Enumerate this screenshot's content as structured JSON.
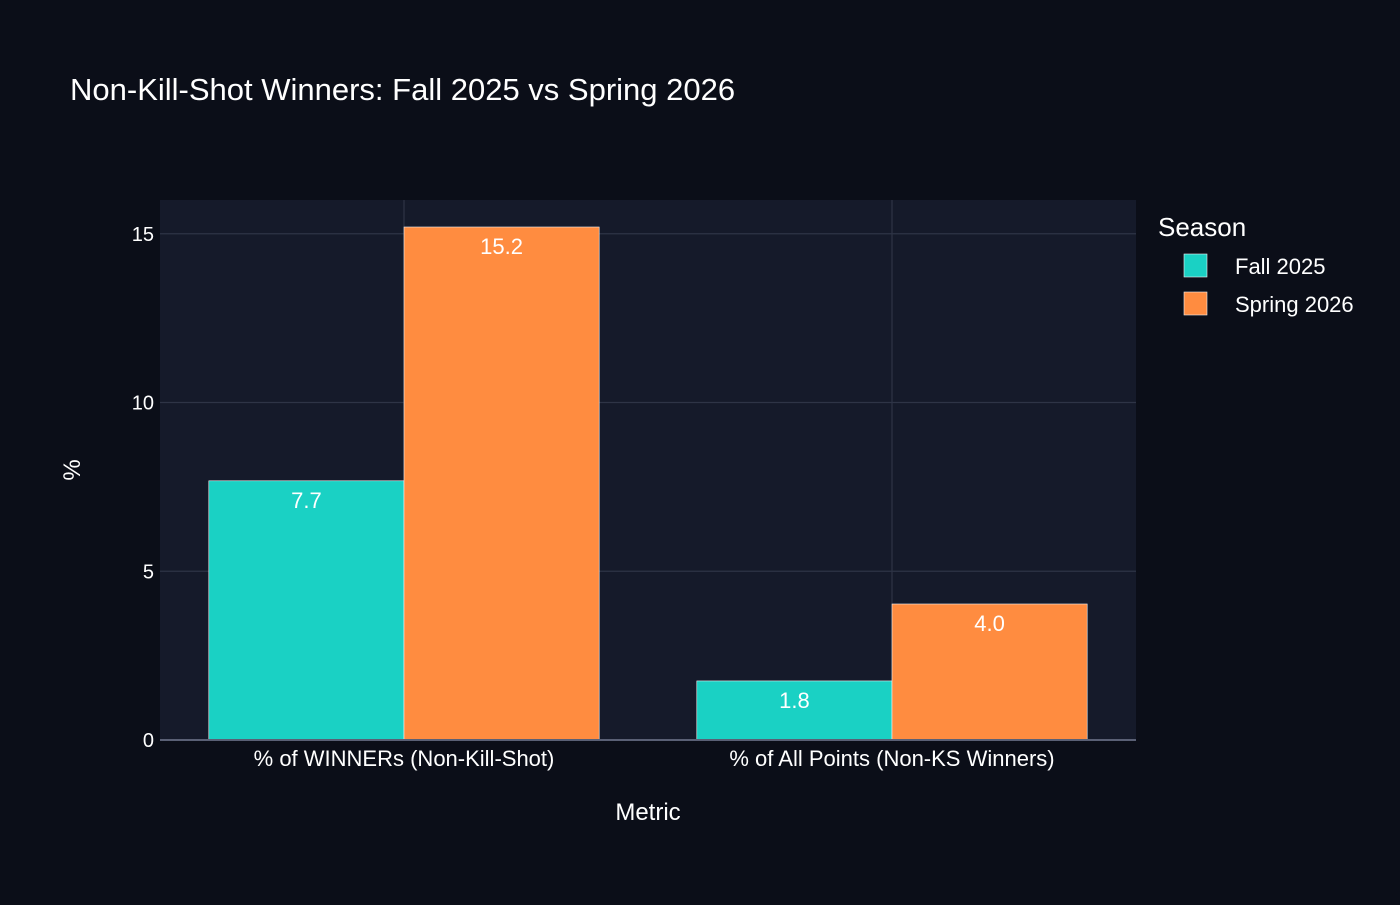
{
  "chart_data": {
    "type": "bar",
    "title": "Non-Kill-Shot Winners: Fall 2025 vs Spring 2026",
    "xlabel": "Metric",
    "ylabel": "%",
    "categories": [
      "% of WINNERs (Non-Kill-Shot)",
      "% of All Points (Non-KS Winners)"
    ],
    "series": [
      {
        "name": "Fall 2025",
        "values": [
          7.68,
          1.75
        ],
        "labels": [
          "7.7",
          "1.8"
        ],
        "color": "#1ad1c4"
      },
      {
        "name": "Spring 2026",
        "values": [
          15.2,
          4.03
        ],
        "labels": [
          "15.2",
          "4.0"
        ],
        "color": "#ff8c40"
      }
    ],
    "ylim": [
      0,
      16
    ],
    "yticks": [
      0,
      5,
      10,
      15
    ],
    "grid": true,
    "legend": {
      "title": "Season",
      "placement": "right"
    },
    "colors": {
      "page_background": "#0b0e18",
      "plot_background": "#151a2a",
      "grid": "#2e3446",
      "text": "#ffffff"
    }
  }
}
